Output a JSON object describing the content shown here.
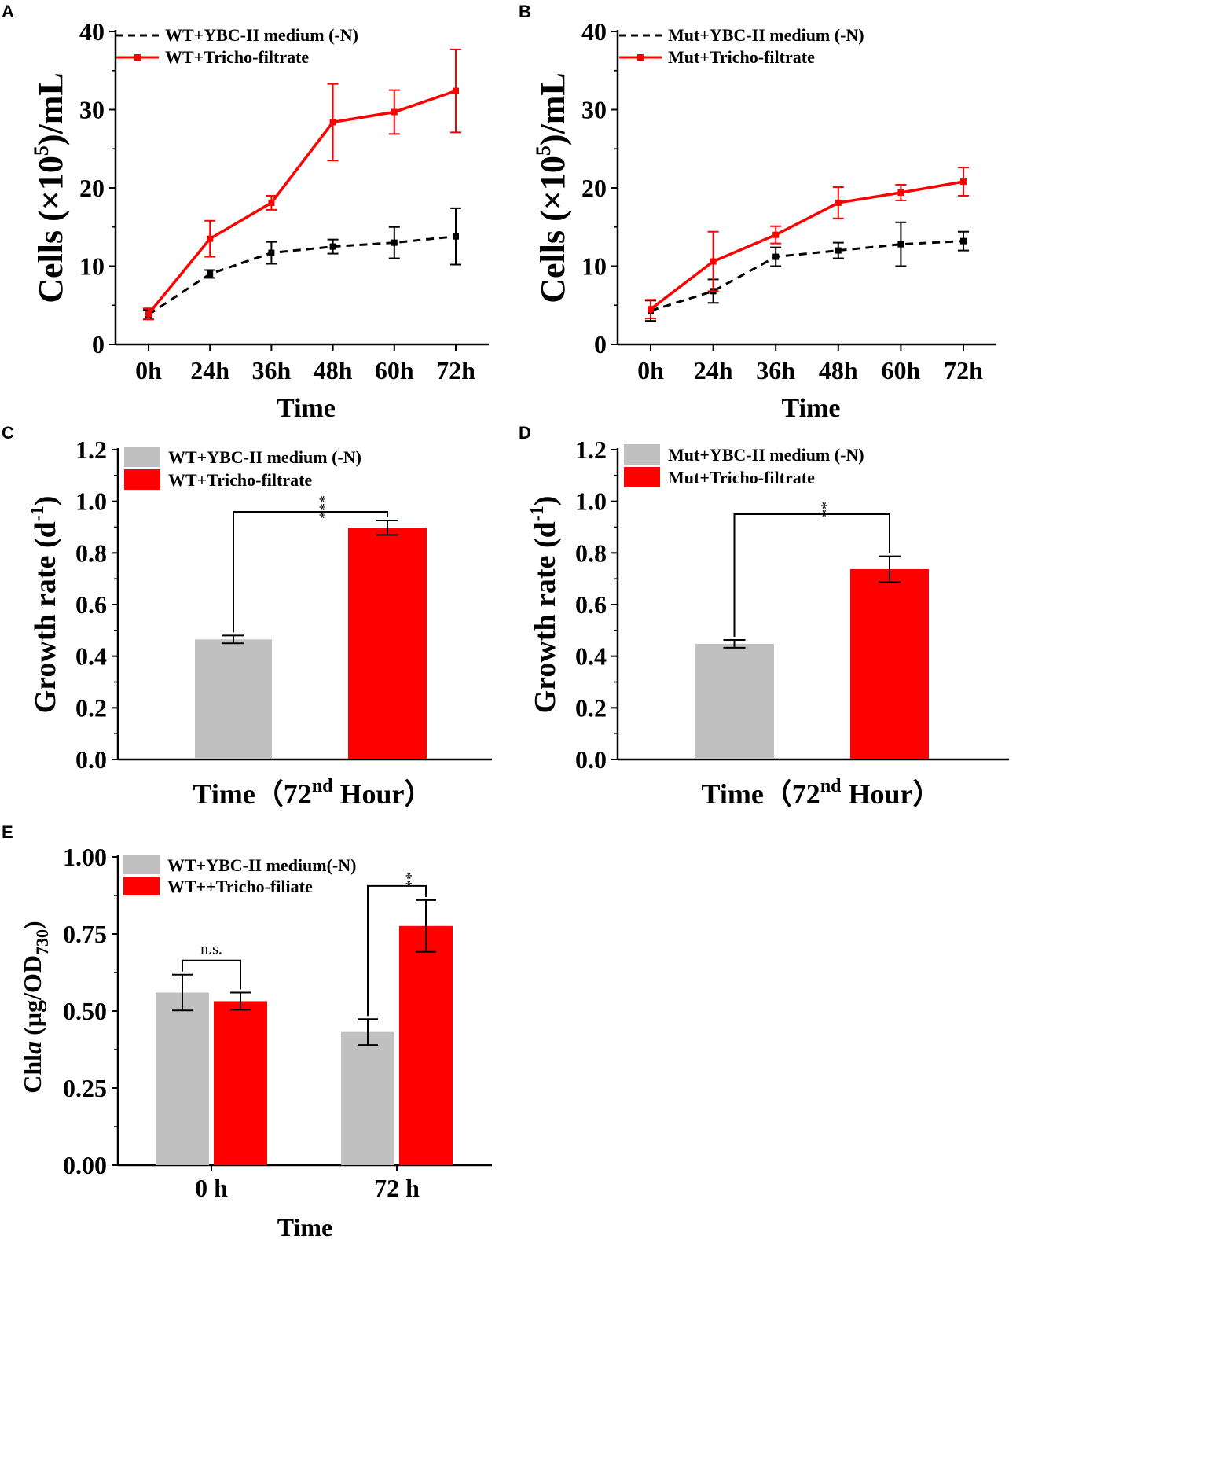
{
  "colors": {
    "red": "#ff0000",
    "gray": "#c0c0c0",
    "black": "#000000"
  },
  "chart_data": [
    {
      "panel": "A",
      "type": "line",
      "xlabel": "Time",
      "ylabel_parts": [
        "Cells (×10",
        "5",
        ")/mL"
      ],
      "categories": [
        "0h",
        "24h",
        "36h",
        "48h",
        "60h",
        "72h"
      ],
      "ylim": [
        0,
        40
      ],
      "yticks": [
        "0",
        "10",
        "20",
        "30",
        "40"
      ],
      "series": [
        {
          "name": "WT+YBC-II medium (-N)",
          "style": "dashed",
          "color": "#000000",
          "values": [
            3.8,
            9.0,
            11.7,
            12.5,
            13.0,
            13.8
          ],
          "errors": [
            0.6,
            0.5,
            1.4,
            0.9,
            2.0,
            3.6
          ]
        },
        {
          "name": "WT+Tricho-filtrate",
          "style": "solid",
          "color": "#ff0000",
          "values": [
            3.9,
            13.5,
            18.1,
            28.4,
            29.7,
            32.4
          ],
          "errors": [
            0.7,
            2.3,
            0.9,
            4.9,
            2.8,
            5.3
          ]
        }
      ]
    },
    {
      "panel": "B",
      "type": "line",
      "xlabel": "Time",
      "ylabel_parts": [
        "Cells (×10",
        "5",
        ")/mL"
      ],
      "categories": [
        "0h",
        "24h",
        "36h",
        "48h",
        "60h",
        "72h"
      ],
      "ylim": [
        0,
        40
      ],
      "yticks": [
        "0",
        "10",
        "20",
        "30",
        "40"
      ],
      "series": [
        {
          "name": "Mut+YBC-II medium (-N)",
          "style": "dashed",
          "color": "#000000",
          "values": [
            4.3,
            6.8,
            11.2,
            12.0,
            12.8,
            13.2
          ],
          "errors": [
            1.3,
            1.5,
            1.2,
            1.0,
            2.8,
            1.2
          ]
        },
        {
          "name": "Mut+Tricho-filtrate",
          "style": "solid",
          "color": "#ff0000",
          "values": [
            4.5,
            10.6,
            14.0,
            18.1,
            19.4,
            20.8
          ],
          "errors": [
            1.2,
            3.8,
            1.1,
            2.0,
            1.0,
            1.8
          ]
        }
      ]
    },
    {
      "panel": "C",
      "type": "bar",
      "xlabel_parts": [
        "Time（72",
        "nd",
        " Hour）"
      ],
      "ylabel_parts": [
        "Growth rate (d",
        "-1",
        ")"
      ],
      "ylim": [
        0,
        1.2
      ],
      "yticks": [
        "0.0",
        "0.2",
        "0.4",
        "0.6",
        "0.8",
        "1.0",
        "1.2"
      ],
      "series": [
        {
          "name": "WT+YBC-II medium (-N)",
          "color": "#c0c0c0",
          "value": 0.465,
          "error": 0.015
        },
        {
          "name": "WT+Tricho-filtrate",
          "color": "#ff0000",
          "value": 0.898,
          "error": 0.028
        }
      ],
      "significance": "***"
    },
    {
      "panel": "D",
      "type": "bar",
      "xlabel_parts": [
        "Time（72",
        "nd",
        " Hour）"
      ],
      "ylabel_parts": [
        "Growth rate (d",
        "-1",
        ")"
      ],
      "ylim": [
        0,
        1.2
      ],
      "yticks": [
        "0.0",
        "0.2",
        "0.4",
        "0.6",
        "0.8",
        "1.0",
        "1.2"
      ],
      "series": [
        {
          "name": "Mut+YBC-II medium (-N)",
          "color": "#c0c0c0",
          "value": 0.448,
          "error": 0.015
        },
        {
          "name": "Mut+Tricho-filtrate",
          "color": "#ff0000",
          "value": 0.737,
          "error": 0.05
        }
      ],
      "significance": "**"
    },
    {
      "panel": "E",
      "type": "bar",
      "xlabel": "Time",
      "ylabel_parts": [
        "Chl",
        "a",
        " (µg/OD",
        "730",
        ")"
      ],
      "categories": [
        "0 h",
        "72 h"
      ],
      "ylim": [
        0,
        1.0
      ],
      "yticks": [
        "0.00",
        "0.25",
        "0.50",
        "0.75",
        "1.00"
      ],
      "series": [
        {
          "name": "WT+YBC-II medium(-N)",
          "color": "#c0c0c0",
          "values": [
            0.56,
            0.432
          ],
          "errors": [
            0.058,
            0.042
          ]
        },
        {
          "name": "WT++Tricho-filiate",
          "color": "#ff0000",
          "values": [
            0.532,
            0.776
          ],
          "errors": [
            0.028,
            0.084
          ]
        }
      ],
      "significance": [
        "n.s.",
        "**"
      ]
    }
  ]
}
